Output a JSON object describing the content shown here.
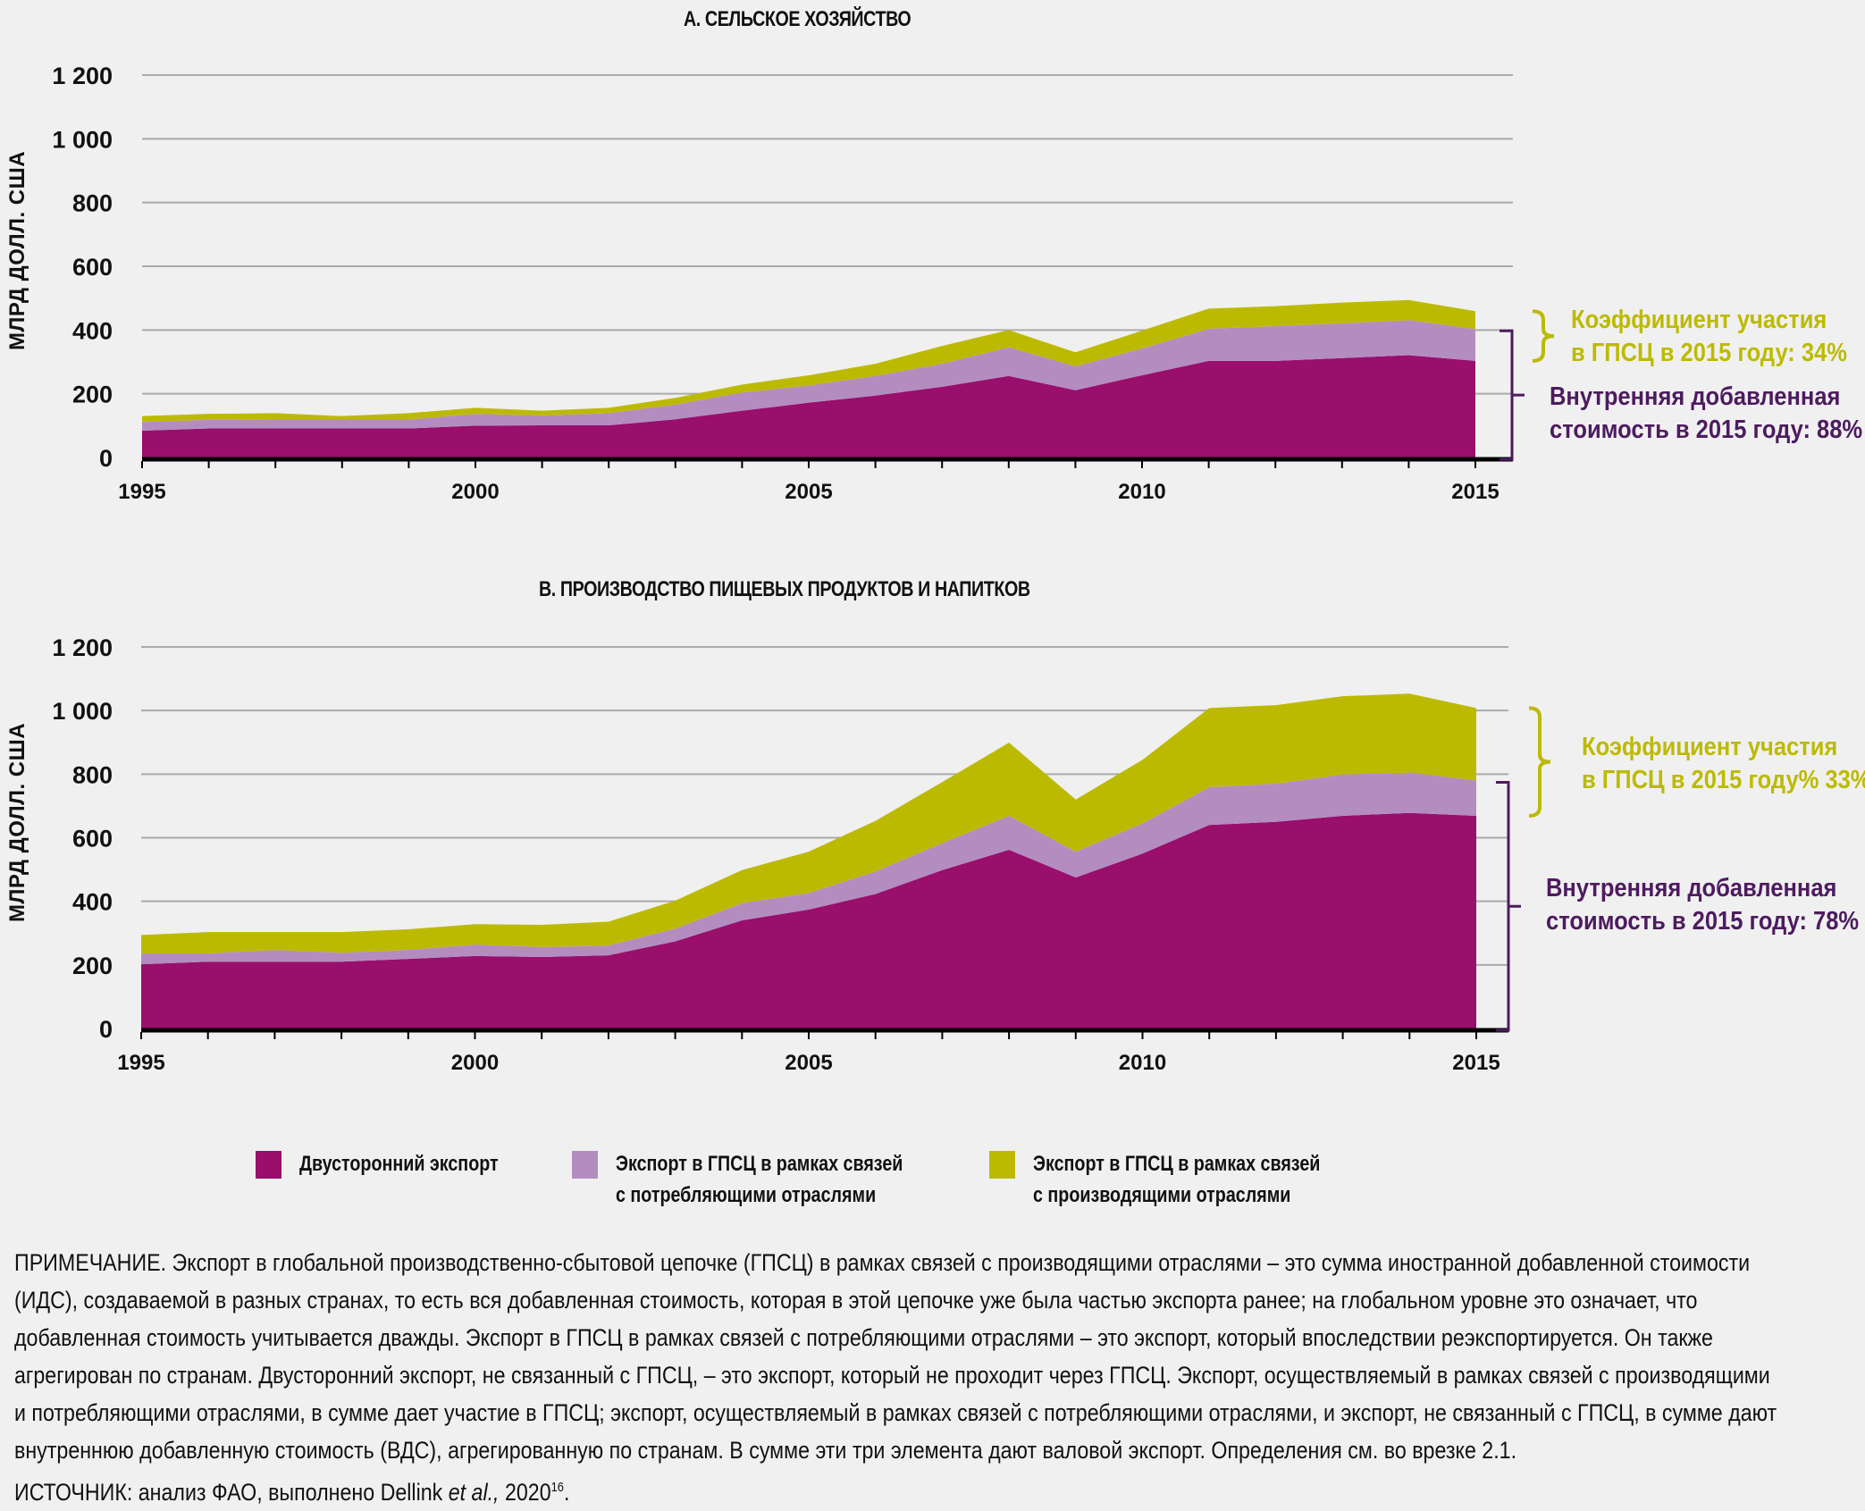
{
  "colors": {
    "bilateral": "#990f6b",
    "backward": "#b38dc0",
    "forward": "#bcba00",
    "dva_bracket": "#4d1b5f",
    "gvc_bracket": "#bcba00",
    "grid": "#aaaaaa",
    "axis": "#000000"
  },
  "chart_data": [
    {
      "type": "area",
      "stacked": true,
      "title": "А. СЕЛЬСКОЕ ХОЗЯЙСТВО",
      "ylabel": "МЛРД ДОЛЛ. США",
      "xlabel": "",
      "ylim": [
        0,
        1200
      ],
      "yticks": [
        0,
        200,
        400,
        600,
        800,
        1000,
        1200
      ],
      "ytick_labels": [
        "0",
        "200",
        "400",
        "600",
        "800",
        "1 000",
        "1 200"
      ],
      "xlim": [
        1995,
        2015
      ],
      "xticks": [
        1995,
        2000,
        2005,
        2010,
        2015
      ],
      "xtick_labels": [
        "1995",
        "2000",
        "2005",
        "2010",
        "2015"
      ],
      "grid": true,
      "x": [
        1995,
        1996,
        1997,
        1998,
        1999,
        2000,
        2001,
        2002,
        2003,
        2004,
        2005,
        2006,
        2007,
        2008,
        2009,
        2010,
        2011,
        2012,
        2013,
        2014,
        2015
      ],
      "series": [
        {
          "name": "Двусторонний экспорт",
          "key": "bilateral",
          "values": [
            84,
            91,
            91,
            91,
            91,
            100,
            101,
            101,
            120,
            147,
            172,
            194,
            222,
            256,
            211,
            258,
            303,
            303,
            312,
            321,
            303
          ]
        },
        {
          "name": "Экспорт в ГПСЦ в рамках связей с потребляющими отраслями",
          "key": "backward",
          "values": [
            27,
            27,
            28,
            28,
            28,
            37,
            31,
            38,
            46,
            57,
            54,
            62,
            72,
            90,
            75,
            84,
            101,
            109,
            109,
            110,
            100
          ]
        },
        {
          "name": "Экспорт в ГПСЦ в рамках связей с производящими отраслями",
          "key": "forward",
          "values": [
            19,
            19,
            20,
            11,
            20,
            19,
            15,
            17,
            21,
            25,
            32,
            38,
            56,
            54,
            44,
            56,
            63,
            63,
            65,
            63,
            56
          ]
        }
      ],
      "annotations": [
        {
          "type": "gvc",
          "text_lines": [
            "Коэффициент участия",
            "в ГПСЦ в 2015 году: 34%"
          ],
          "value_percent": 34
        },
        {
          "type": "dva",
          "text_lines": [
            "Внутренняя добавленная",
            "стоимость в 2015 году: 88%"
          ],
          "value_percent": 88
        }
      ]
    },
    {
      "type": "area",
      "stacked": true,
      "title": "B. ПРОИЗВОДСТВО ПИЩЕВЫХ ПРОДУКТОВ И НАПИТКОВ",
      "ylabel": "МЛРД ДОЛЛ. США",
      "xlabel": "",
      "ylim": [
        0,
        1200
      ],
      "yticks": [
        0,
        200,
        400,
        600,
        800,
        1000,
        1200
      ],
      "ytick_labels": [
        "0",
        "200",
        "400",
        "600",
        "800",
        "1 000",
        "1 200"
      ],
      "xlim": [
        1995,
        2015
      ],
      "xticks": [
        1995,
        2000,
        2005,
        2010,
        2015
      ],
      "xtick_labels": [
        "1995",
        "2000",
        "2005",
        "2010",
        "2015"
      ],
      "grid": true,
      "x": [
        1995,
        1996,
        1997,
        1998,
        1999,
        2000,
        2001,
        2002,
        2003,
        2004,
        2005,
        2006,
        2007,
        2008,
        2009,
        2010,
        2011,
        2012,
        2013,
        2014,
        2015
      ],
      "series": [
        {
          "name": "Двусторонний экспорт",
          "key": "bilateral",
          "values": [
            202,
            210,
            210,
            210,
            219,
            228,
            225,
            230,
            274,
            340,
            374,
            423,
            498,
            562,
            475,
            550,
            640,
            650,
            669,
            678,
            669
          ]
        },
        {
          "name": "Экспорт в ГПСЦ в рамках связей с потребляющими отраслями",
          "key": "backward",
          "values": [
            34,
            26,
            37,
            28,
            28,
            36,
            31,
            31,
            40,
            54,
            52,
            71,
            85,
            107,
            81,
            95,
            119,
            120,
            130,
            127,
            111
          ]
        },
        {
          "name": "Экспорт в ГПСЦ в рамках связей с производящими отраслями",
          "key": "forward",
          "values": [
            58,
            67,
            56,
            65,
            65,
            64,
            70,
            75,
            88,
            104,
            130,
            159,
            192,
            230,
            164,
            200,
            249,
            247,
            246,
            248,
            228
          ]
        }
      ],
      "annotations": [
        {
          "type": "gvc",
          "text_lines": [
            "Коэффициент участия",
            "в ГПСЦ в 2015 году% 33%"
          ],
          "value_percent": 33
        },
        {
          "type": "dva",
          "text_lines": [
            "Внутренняя добавленная",
            "стоимость в 2015 году: 78%"
          ],
          "value_percent": 78
        }
      ]
    }
  ],
  "legend": {
    "placement": "bottom",
    "items": [
      {
        "key": "bilateral",
        "lines": [
          "Двусторонний экспорт"
        ]
      },
      {
        "key": "backward",
        "lines": [
          "Экспорт в ГПСЦ в рамках связей",
          "с потребляющими отраслями"
        ]
      },
      {
        "key": "forward",
        "lines": [
          "Экспорт в ГПСЦ в рамках связей",
          "с производящими отраслями"
        ]
      }
    ]
  },
  "note": {
    "lines": [
      "ПРИМЕЧАНИЕ. Экспорт в глобальной производственно-сбытовой цепочке (ГПСЦ) в рамках связей с производящими отраслями – это сумма иностранной  добавленной стоимости",
      "(ИДС), создаваемой в разных странах, то есть вся добавленная стоимость, которая в этой цепочке уже была частью экспорта ранее; на глобальном уровне это означает, что",
      "добавленная стоимость учитывается дважды. Экспорт в ГПСЦ в рамках связей с потребляющими отраслями – это экспорт, который впоследствии реэкспортируется. Он также",
      "агрегирован по странам. Двусторонний экспорт, не связанный с ГПСЦ, – это экспорт, который не проходит через ГПСЦ. Экспорт, осуществляемый в рамках связей с производящими",
      "и потребляющими отраслями, в сумме дает участие в ГПСЦ; экспорт,  осуществляемый в рамках связей с потребляющими отраслями, и экспорт, не связанный с ГПСЦ, в сумме дают",
      "внутреннюю добавленную стоимость (ВДС), агрегированную по странам. В сумме эти три элемента дают валовой экспорт. Определения см. во врезке 2.1."
    ],
    "source_prefix": "ИСТОЧНИК: анализ ФАО, выполнено Dellink ",
    "source_italic": "et al.,",
    "source_year": " 2020",
    "source_sup": "16",
    "source_suffix": "."
  }
}
